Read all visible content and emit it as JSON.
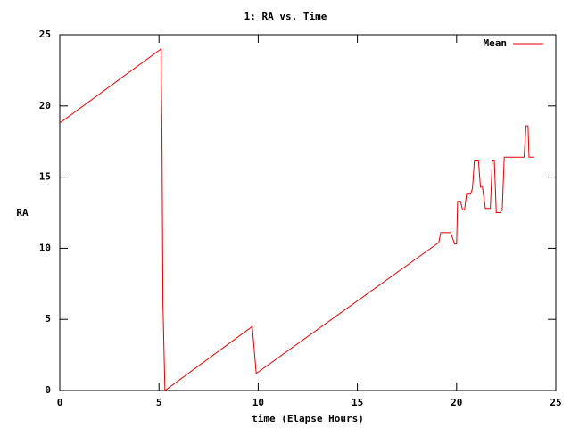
{
  "chart_data": {
    "type": "line",
    "title": "1: RA vs. Time",
    "xlabel": "time (Elapse Hours)",
    "ylabel": "RA",
    "xlim": [
      0,
      25
    ],
    "ylim": [
      0,
      25
    ],
    "xticks": [
      0,
      5,
      10,
      15,
      20,
      25
    ],
    "yticks": [
      0,
      5,
      10,
      15,
      20,
      25
    ],
    "legend": "top-right",
    "x": [
      0,
      5.1,
      5.15,
      5.2,
      5.3,
      9.7,
      9.9,
      19.1,
      19.2,
      19.7,
      19.9,
      20,
      20.05,
      20.2,
      20.3,
      20.4,
      20.5,
      20.7,
      20.8,
      20.9,
      21.1,
      21.2,
      21.3,
      21.45,
      21.7,
      21.8,
      21.9,
      22.0,
      22.2,
      22.3,
      22.4,
      23.4,
      23.5,
      23.6,
      23.65,
      23.9
    ],
    "series": [
      {
        "name": "Mean",
        "color": "#e00000",
        "values": [
          18.8,
          24,
          18,
          6,
          0,
          4.5,
          1.2,
          10.4,
          11.1,
          11.1,
          10.3,
          10.3,
          13.3,
          13.3,
          12.7,
          12.7,
          13.8,
          13.8,
          14.2,
          16.2,
          16.2,
          14.3,
          14.3,
          12.8,
          12.8,
          16.2,
          16.2,
          12.5,
          12.5,
          12.7,
          16.4,
          16.4,
          18.6,
          18.6,
          16.4,
          16.4
        ]
      }
    ]
  }
}
